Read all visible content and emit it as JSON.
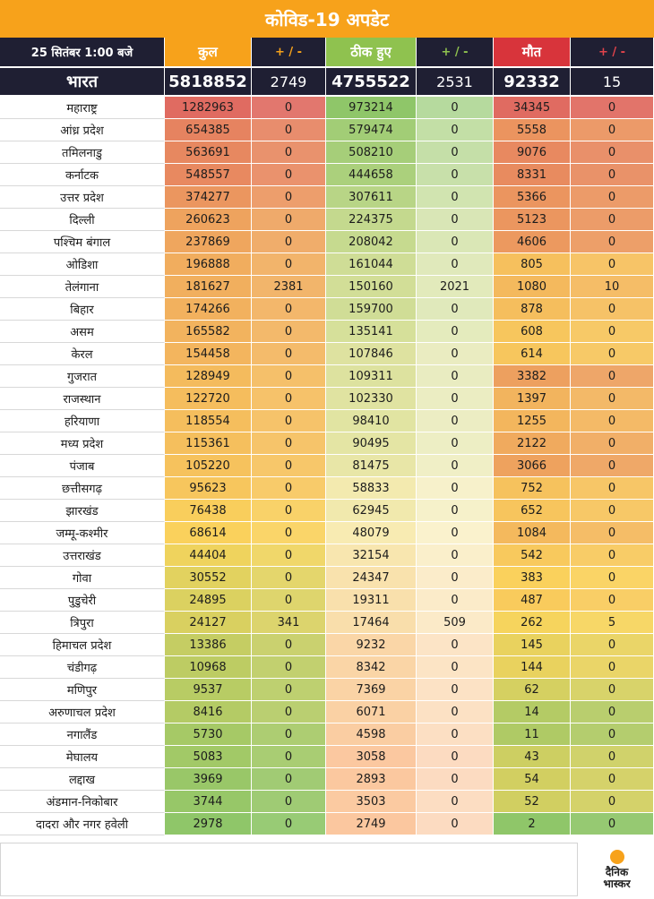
{
  "title": "कोविड-19 अपडेट",
  "header": {
    "date_time": "25 सितंबर  1:00 बजे",
    "total": "कुल",
    "change1": "+ / -",
    "recovered": "ठीक हुए",
    "change2": "+ / -",
    "deaths": "मौत",
    "change3": "+ / -"
  },
  "national": {
    "name": "भारत",
    "total": "5818852",
    "total_change": "2749",
    "recovered": "4755522",
    "recovered_change": "2531",
    "deaths": "92332",
    "deaths_change": "15"
  },
  "states": [
    {
      "name": "महाराष्ट्र",
      "total": "1282963",
      "total_change": "0",
      "recovered": "973214",
      "recovered_change": "0",
      "deaths": "34345",
      "deaths_change": "0"
    },
    {
      "name": "आंध्र प्रदेश",
      "total": "654385",
      "total_change": "0",
      "recovered": "579474",
      "recovered_change": "0",
      "deaths": "5558",
      "deaths_change": "0"
    },
    {
      "name": "तमिलनाडु",
      "total": "563691",
      "total_change": "0",
      "recovered": "508210",
      "recovered_change": "0",
      "deaths": "9076",
      "deaths_change": "0"
    },
    {
      "name": "कर्नाटक",
      "total": "548557",
      "total_change": "0",
      "recovered": "444658",
      "recovered_change": "0",
      "deaths": "8331",
      "deaths_change": "0"
    },
    {
      "name": "उत्तर प्रदेश",
      "total": "374277",
      "total_change": "0",
      "recovered": "307611",
      "recovered_change": "0",
      "deaths": "5366",
      "deaths_change": "0"
    },
    {
      "name": "दिल्ली",
      "total": "260623",
      "total_change": "0",
      "recovered": "224375",
      "recovered_change": "0",
      "deaths": "5123",
      "deaths_change": "0"
    },
    {
      "name": "पश्चिम बंगाल",
      "total": "237869",
      "total_change": "0",
      "recovered": "208042",
      "recovered_change": "0",
      "deaths": "4606",
      "deaths_change": "0"
    },
    {
      "name": "ओडिशा",
      "total": "196888",
      "total_change": "0",
      "recovered": "161044",
      "recovered_change": "0",
      "deaths": "805",
      "deaths_change": "0"
    },
    {
      "name": "तेलंगाना",
      "total": "181627",
      "total_change": "2381",
      "recovered": "150160",
      "recovered_change": "2021",
      "deaths": "1080",
      "deaths_change": "10"
    },
    {
      "name": "बिहार",
      "total": "174266",
      "total_change": "0",
      "recovered": "159700",
      "recovered_change": "0",
      "deaths": "878",
      "deaths_change": "0"
    },
    {
      "name": "असम",
      "total": "165582",
      "total_change": "0",
      "recovered": "135141",
      "recovered_change": "0",
      "deaths": "608",
      "deaths_change": "0"
    },
    {
      "name": "केरल",
      "total": "154458",
      "total_change": "0",
      "recovered": "107846",
      "recovered_change": "0",
      "deaths": "614",
      "deaths_change": "0"
    },
    {
      "name": "गुजरात",
      "total": "128949",
      "total_change": "0",
      "recovered": "109311",
      "recovered_change": "0",
      "deaths": "3382",
      "deaths_change": "0"
    },
    {
      "name": "राजस्थान",
      "total": "122720",
      "total_change": "0",
      "recovered": "102330",
      "recovered_change": "0",
      "deaths": "1397",
      "deaths_change": "0"
    },
    {
      "name": "हरियाणा",
      "total": "118554",
      "total_change": "0",
      "recovered": "98410",
      "recovered_change": "0",
      "deaths": "1255",
      "deaths_change": "0"
    },
    {
      "name": "मध्य प्रदेश",
      "total": "115361",
      "total_change": "0",
      "recovered": "90495",
      "recovered_change": "0",
      "deaths": "2122",
      "deaths_change": "0"
    },
    {
      "name": "पंजाब",
      "total": "105220",
      "total_change": "0",
      "recovered": "81475",
      "recovered_change": "0",
      "deaths": "3066",
      "deaths_change": "0"
    },
    {
      "name": "छत्तीसगढ़",
      "total": "95623",
      "total_change": "0",
      "recovered": "58833",
      "recovered_change": "0",
      "deaths": "752",
      "deaths_change": "0"
    },
    {
      "name": "झारखंड",
      "total": "76438",
      "total_change": "0",
      "recovered": "62945",
      "recovered_change": "0",
      "deaths": "652",
      "deaths_change": "0"
    },
    {
      "name": "जम्मू-कश्मीर",
      "total": "68614",
      "total_change": "0",
      "recovered": "48079",
      "recovered_change": "0",
      "deaths": "1084",
      "deaths_change": "0"
    },
    {
      "name": "उत्तराखंड",
      "total": "44404",
      "total_change": "0",
      "recovered": "32154",
      "recovered_change": "0",
      "deaths": "542",
      "deaths_change": "0"
    },
    {
      "name": "गोवा",
      "total": "30552",
      "total_change": "0",
      "recovered": "24347",
      "recovered_change": "0",
      "deaths": "383",
      "deaths_change": "0"
    },
    {
      "name": "पुडुचेरी",
      "total": "24895",
      "total_change": "0",
      "recovered": "19311",
      "recovered_change": "0",
      "deaths": "487",
      "deaths_change": "0"
    },
    {
      "name": "त्रिपुरा",
      "total": "24127",
      "total_change": "341",
      "recovered": "17464",
      "recovered_change": "509",
      "deaths": "262",
      "deaths_change": "5"
    },
    {
      "name": "हिमाचल प्रदेश",
      "total": "13386",
      "total_change": "0",
      "recovered": "9232",
      "recovered_change": "0",
      "deaths": "145",
      "deaths_change": "0"
    },
    {
      "name": "चंडीगढ़",
      "total": "10968",
      "total_change": "0",
      "recovered": "8342",
      "recovered_change": "0",
      "deaths": "144",
      "deaths_change": "0"
    },
    {
      "name": "मणिपुर",
      "total": "9537",
      "total_change": "0",
      "recovered": "7369",
      "recovered_change": "0",
      "deaths": "62",
      "deaths_change": "0"
    },
    {
      "name": "अरुणाचल प्रदेश",
      "total": "8416",
      "total_change": "0",
      "recovered": "6071",
      "recovered_change": "0",
      "deaths": "14",
      "deaths_change": "0"
    },
    {
      "name": "नगालैंड",
      "total": "5730",
      "total_change": "0",
      "recovered": "4598",
      "recovered_change": "0",
      "deaths": "11",
      "deaths_change": "0"
    },
    {
      "name": "मेघालय",
      "total": "5083",
      "total_change": "0",
      "recovered": "3058",
      "recovered_change": "0",
      "deaths": "43",
      "deaths_change": "0"
    },
    {
      "name": "लद्दाख",
      "total": "3969",
      "total_change": "0",
      "recovered": "2893",
      "recovered_change": "0",
      "deaths": "54",
      "deaths_change": "0"
    },
    {
      "name": "अंडमान-निकोबार",
      "total": "3744",
      "total_change": "0",
      "recovered": "3503",
      "recovered_change": "0",
      "deaths": "52",
      "deaths_change": "0"
    },
    {
      "name": "दादरा और नगर हवेली",
      "total": "2978",
      "total_change": "0",
      "recovered": "2749",
      "recovered_change": "0",
      "deaths": "2",
      "deaths_change": "0"
    }
  ],
  "colors": {
    "title_bg": "#f7a21b",
    "header_bg": "#1f1f33",
    "total_header": "#f7a21b",
    "recovered_header": "#8fc24f",
    "deaths_header": "#d8343b",
    "scale_high": "#e06b61",
    "scale_mid": "#fbd55c",
    "scale_low": "#8fc669",
    "recovered_low": "#fbc79f"
  },
  "logo": {
    "line1": "दैनिक",
    "line2": "भास्कर"
  }
}
